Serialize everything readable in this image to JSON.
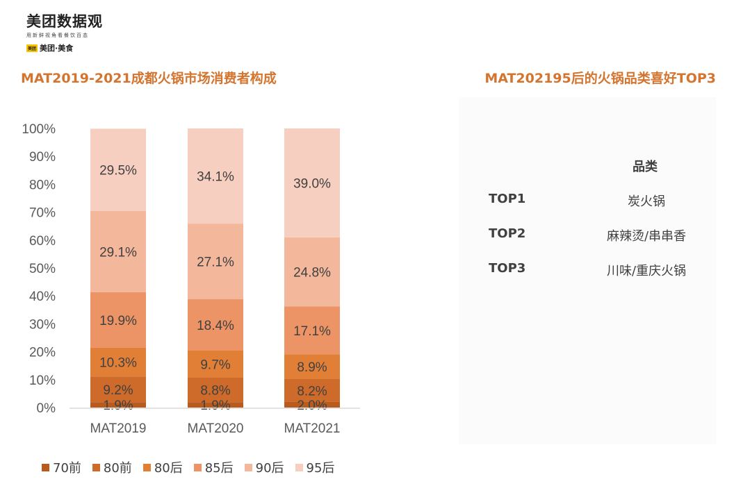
{
  "logo": {
    "main": "美团数据观",
    "sub": "用新鲜视角看餐饮百态",
    "brand_box": "美团",
    "brand": "美团·美食"
  },
  "left_title": "MAT2019-2021成都火锅市场消费者构成",
  "right_title": "MAT202195后的火锅品类喜好TOP3",
  "chart_data": {
    "type": "bar",
    "stacked": true,
    "percent": true,
    "categories": [
      "MAT2019",
      "MAT2020",
      "MAT2021"
    ],
    "ylim": [
      0,
      100
    ],
    "y_ticks": [
      "0%",
      "10%",
      "20%",
      "30%",
      "40%",
      "50%",
      "60%",
      "70%",
      "80%",
      "90%",
      "100%"
    ],
    "series": [
      {
        "name": "70前",
        "values": [
          1.9,
          1.9,
          2.0
        ],
        "labels": [
          "1.9%",
          "1.9%",
          "2.0%"
        ],
        "color": "#b85b1f"
      },
      {
        "name": "80前",
        "values": [
          9.2,
          8.8,
          8.2
        ],
        "labels": [
          "9.2%",
          "8.8%",
          "8.2%"
        ],
        "color": "#cf6b2a"
      },
      {
        "name": "80后",
        "values": [
          10.3,
          9.7,
          8.9
        ],
        "labels": [
          "10.3%",
          "9.7%",
          "8.9%"
        ],
        "color": "#e27f37"
      },
      {
        "name": "85后",
        "values": [
          19.9,
          18.4,
          17.1
        ],
        "labels": [
          "19.9%",
          "18.4%",
          "17.1%"
        ],
        "color": "#ec9466"
      },
      {
        "name": "90后",
        "values": [
          29.1,
          27.1,
          24.8
        ],
        "labels": [
          "29.1%",
          "27.1%",
          "24.8%"
        ],
        "color": "#f3b79b"
      },
      {
        "name": "95后",
        "values": [
          29.5,
          34.1,
          39.0
        ],
        "labels": [
          "29.5%",
          "34.1%",
          "39.0%"
        ],
        "color": "#f7cfc0"
      }
    ],
    "legend": "bottom",
    "grid": false
  },
  "top3": {
    "column_header": "品类",
    "rows": [
      {
        "rank": "TOP1",
        "category": "炭火锅"
      },
      {
        "rank": "TOP2",
        "category": "麻辣烫/串串香"
      },
      {
        "rank": "TOP3",
        "category": "川味/重庆火锅"
      }
    ]
  }
}
